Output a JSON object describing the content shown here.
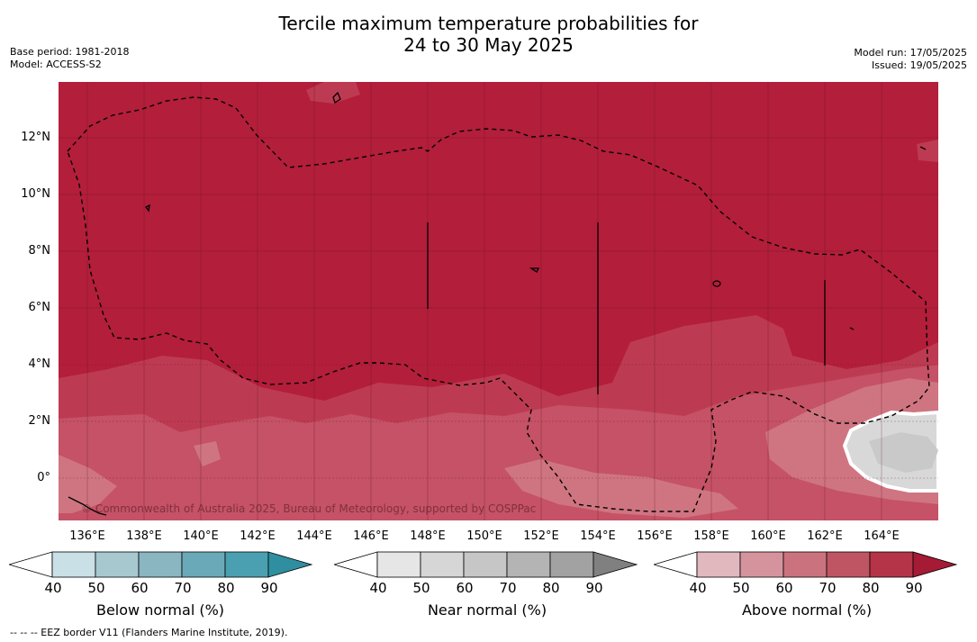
{
  "title_line1": "Tercile maximum temperature probabilities for",
  "title_line2": "24 to 30 May 2025",
  "base_period": "Base period: 1981-2018",
  "model": "Model: ACCESS-S2",
  "model_run": "Model run: 17/05/2025",
  "issued": "Issued: 19/05/2025",
  "copyright": "© Commonwealth of Australia 2025, Bureau of Meteorology, supported by COSPPac",
  "footer": "--  --  -- EEZ border V11 (Flanders Marine Institute, 2019).",
  "lat_ticks": [
    "12°N",
    "10°N",
    "8°N",
    "6°N",
    "4°N",
    "2°N",
    "0°"
  ],
  "lon_ticks": [
    "136°E",
    "138°E",
    "140°E",
    "142°E",
    "144°E",
    "146°E",
    "148°E",
    "150°E",
    "152°E",
    "154°E",
    "156°E",
    "158°E",
    "160°E",
    "162°E",
    "164°E"
  ],
  "colorbars": [
    {
      "label": "Below normal (%)",
      "ticks": [
        "40",
        "50",
        "60",
        "70",
        "80",
        "90"
      ],
      "colors": [
        "#ffffff",
        "#c9e0e6",
        "#a8c8cf",
        "#8ab6c1",
        "#6aaab8",
        "#4aa0b0",
        "#2f8fa0"
      ]
    },
    {
      "label": "Near normal (%)",
      "ticks": [
        "40",
        "50",
        "60",
        "70",
        "80",
        "90"
      ],
      "colors": [
        "#ffffff",
        "#e6e6e6",
        "#d6d6d6",
        "#c6c6c6",
        "#b4b4b4",
        "#a2a2a2",
        "#808080"
      ]
    },
    {
      "label": "Above normal (%)",
      "ticks": [
        "40",
        "50",
        "60",
        "70",
        "80",
        "90"
      ],
      "colors": [
        "#ffffff",
        "#e2b8bf",
        "#d5949d",
        "#ca737e",
        "#bf5563",
        "#b63447",
        "#a51a35"
      ]
    }
  ],
  "colors": {
    "above_90": "#b31e3b",
    "above_80": "#bd3b52",
    "above_70": "#c55266",
    "above_60": "#cf7581",
    "near_50": "#d8d8d8",
    "near_60": "#c9c9c9"
  }
}
